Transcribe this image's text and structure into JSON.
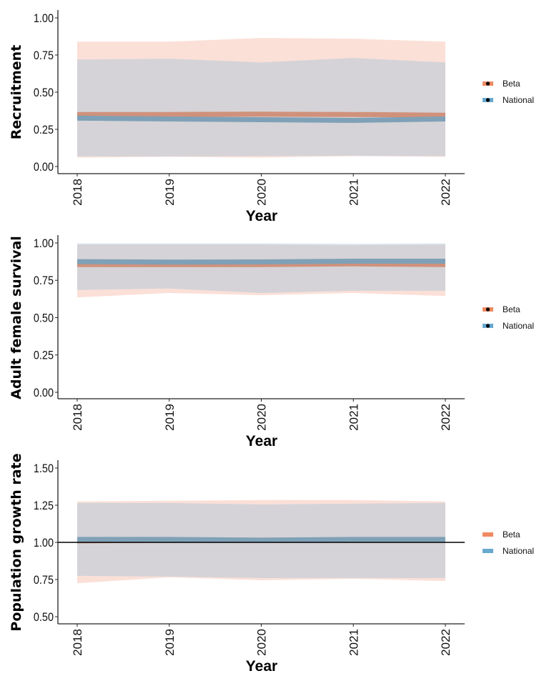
{
  "chart_data": [
    {
      "type": "line",
      "ylabel": "Recruitment",
      "xlabel": "Year",
      "x": [
        2018,
        2019,
        2020,
        2021,
        2022
      ],
      "ylim": [
        0,
        1
      ],
      "yticks": [
        "0.00",
        "0.25",
        "0.50",
        "0.75",
        "1.00"
      ],
      "ytick_values": [
        0,
        0.25,
        0.5,
        0.75,
        1.0
      ],
      "legend_points": true,
      "reference_line": null,
      "series": [
        {
          "name": "Beta",
          "color": "#ef8a62",
          "line_color": "#d0917b",
          "ribbon_color": "#fbe0d8",
          "mean": [
            0.35,
            0.35,
            0.352,
            0.35,
            0.345
          ],
          "lower": [
            0.06,
            0.065,
            0.06,
            0.07,
            0.065
          ],
          "upper": [
            0.84,
            0.84,
            0.865,
            0.86,
            0.84
          ]
        },
        {
          "name": "National",
          "color": "#67a9cf",
          "line_color": "#7fa1b7",
          "ribbon_color": "#dce8f0",
          "mean": [
            0.325,
            0.32,
            0.315,
            0.31,
            0.32
          ],
          "lower": [
            0.068,
            0.068,
            0.07,
            0.072,
            0.07
          ],
          "upper": [
            0.72,
            0.725,
            0.7,
            0.73,
            0.7
          ]
        }
      ]
    },
    {
      "type": "line",
      "ylabel": "Adult female survival",
      "xlabel": "Year",
      "x": [
        2018,
        2019,
        2020,
        2021,
        2022
      ],
      "ylim": [
        0,
        1
      ],
      "yticks": [
        "0.00",
        "0.25",
        "0.50",
        "0.75",
        "1.00"
      ],
      "ytick_values": [
        0,
        0.25,
        0.5,
        0.75,
        1.0
      ],
      "legend_points": true,
      "reference_line": null,
      "series": [
        {
          "name": "Beta",
          "color": "#ef8a62",
          "line_color": "#d0917b",
          "ribbon_color": "#fbe0d8",
          "mean": [
            0.855,
            0.855,
            0.855,
            0.86,
            0.855
          ],
          "lower": [
            0.635,
            0.665,
            0.65,
            0.665,
            0.645
          ],
          "upper": [
            0.99,
            0.99,
            0.99,
            0.985,
            0.99
          ]
        },
        {
          "name": "National",
          "color": "#67a9cf",
          "line_color": "#7fa1b7",
          "ribbon_color": "#dce8f0",
          "mean": [
            0.875,
            0.872,
            0.873,
            0.878,
            0.878
          ],
          "lower": [
            0.685,
            0.695,
            0.665,
            0.68,
            0.68
          ],
          "upper": [
            0.997,
            0.997,
            0.997,
            0.995,
            0.997
          ]
        }
      ]
    },
    {
      "type": "line",
      "ylabel": "Population growth rate",
      "xlabel": "Year",
      "x": [
        2018,
        2019,
        2020,
        2021,
        2022
      ],
      "ylim": [
        0.5,
        1.5
      ],
      "yticks": [
        "0.50",
        "0.75",
        "1.00",
        "1.25",
        "1.50"
      ],
      "ytick_values": [
        0.5,
        0.75,
        1.0,
        1.25,
        1.5
      ],
      "legend_points": false,
      "reference_line": 1.0,
      "series": [
        {
          "name": "Beta",
          "color": "#ef8a62",
          "line_color": "#d0917b",
          "ribbon_color": "#fbe0d8",
          "mean": [
            1.01,
            1.015,
            1.015,
            1.015,
            1.015
          ],
          "lower": [
            0.725,
            0.765,
            0.745,
            0.755,
            0.74
          ],
          "upper": [
            1.275,
            1.28,
            1.285,
            1.285,
            1.275
          ]
        },
        {
          "name": "National",
          "color": "#67a9cf",
          "line_color": "#7fa1b7",
          "ribbon_color": "#dce8f0",
          "mean": [
            1.02,
            1.02,
            1.015,
            1.02,
            1.02
          ],
          "lower": [
            0.775,
            0.77,
            0.76,
            0.76,
            0.76
          ],
          "upper": [
            1.265,
            1.265,
            1.255,
            1.26,
            1.265
          ]
        }
      ]
    }
  ],
  "overlap_color": "#d5d3d7"
}
